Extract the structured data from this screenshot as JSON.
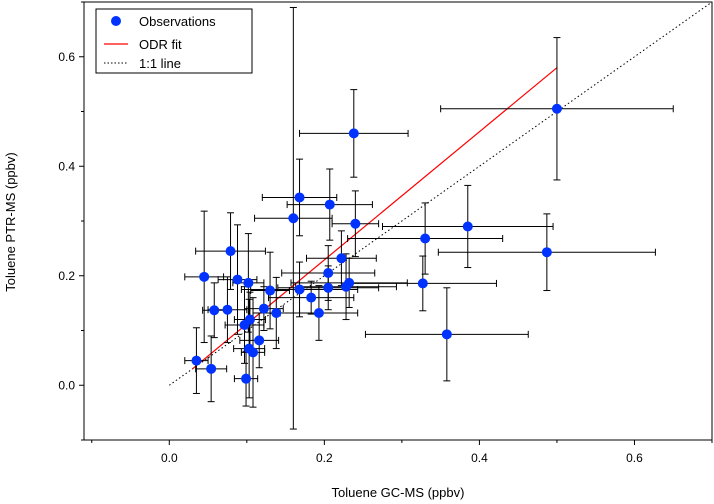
{
  "chart_data": {
    "type": "scatter",
    "xlabel": "Toluene GC-MS (ppbv)",
    "ylabel": "Toluene PTR-MS (ppbv)",
    "xlim": [
      -0.11,
      0.7
    ],
    "ylim": [
      -0.1,
      0.7
    ],
    "xticks": [
      "0.0",
      "0.2",
      "0.4",
      "0.6"
    ],
    "yticks": [
      "0.0",
      "0.2",
      "0.4",
      "0.6"
    ],
    "xtick_values": [
      0.0,
      0.2,
      0.4,
      0.6
    ],
    "ytick_values": [
      0.0,
      0.2,
      0.4,
      0.6
    ],
    "grid": false,
    "legend": {
      "position": "top-left",
      "entries": [
        {
          "label": "Observations",
          "style": "marker",
          "color": "#0033ff"
        },
        {
          "label": "ODR fit",
          "style": "line",
          "color": "#ff0000"
        },
        {
          "label": "1:1 line",
          "style": "dotted",
          "color": "#000000"
        }
      ]
    },
    "series": [
      {
        "name": "Observations",
        "type": "scatter-errorbars",
        "color": "#0033ff",
        "points": [
          {
            "x": 0.5,
            "y": 0.505,
            "xerr": 0.15,
            "yerr": 0.13
          },
          {
            "x": 0.238,
            "y": 0.46,
            "xerr": 0.07,
            "yerr": 0.08
          },
          {
            "x": 0.385,
            "y": 0.29,
            "xerr": 0.11,
            "yerr": 0.075
          },
          {
            "x": 0.487,
            "y": 0.243,
            "xerr": 0.14,
            "yerr": 0.07
          },
          {
            "x": 0.33,
            "y": 0.268,
            "xerr": 0.1,
            "yerr": 0.065
          },
          {
            "x": 0.358,
            "y": 0.093,
            "xerr": 0.105,
            "yerr": 0.085
          },
          {
            "x": 0.327,
            "y": 0.186,
            "xerr": 0.095,
            "yerr": 0.05
          },
          {
            "x": 0.168,
            "y": 0.343,
            "xerr": 0.048,
            "yerr": 0.07
          },
          {
            "x": 0.207,
            "y": 0.33,
            "xerr": 0.055,
            "yerr": 0.065
          },
          {
            "x": 0.16,
            "y": 0.305,
            "xerr": 0.05,
            "yerr": 0.385
          },
          {
            "x": 0.24,
            "y": 0.295,
            "xerr": 0.03,
            "yerr": 0.06
          },
          {
            "x": 0.222,
            "y": 0.232,
            "xerr": 0.045,
            "yerr": 0.05
          },
          {
            "x": 0.205,
            "y": 0.205,
            "xerr": 0.06,
            "yerr": 0.05
          },
          {
            "x": 0.232,
            "y": 0.187,
            "xerr": 0.075,
            "yerr": 0.045
          },
          {
            "x": 0.228,
            "y": 0.18,
            "xerr": 0.065,
            "yerr": 0.06
          },
          {
            "x": 0.205,
            "y": 0.178,
            "xerr": 0.065,
            "yerr": 0.04
          },
          {
            "x": 0.168,
            "y": 0.175,
            "xerr": 0.075,
            "yerr": 0.05
          },
          {
            "x": 0.183,
            "y": 0.16,
            "xerr": 0.055,
            "yerr": 0.03
          },
          {
            "x": 0.193,
            "y": 0.132,
            "xerr": 0.05,
            "yerr": 0.05
          },
          {
            "x": 0.079,
            "y": 0.245,
            "xerr": 0.045,
            "yerr": 0.07
          },
          {
            "x": 0.045,
            "y": 0.198,
            "xerr": 0.025,
            "yerr": 0.12
          },
          {
            "x": 0.088,
            "y": 0.193,
            "xerr": 0.025,
            "yerr": 0.1
          },
          {
            "x": 0.102,
            "y": 0.187,
            "xerr": 0.02,
            "yerr": 0.09
          },
          {
            "x": 0.13,
            "y": 0.173,
            "xerr": 0.025,
            "yerr": 0.07
          },
          {
            "x": 0.058,
            "y": 0.137,
            "xerr": 0.015,
            "yerr": 0.05
          },
          {
            "x": 0.075,
            "y": 0.138,
            "xerr": 0.025,
            "yerr": 0.06
          },
          {
            "x": 0.122,
            "y": 0.14,
            "xerr": 0.025,
            "yerr": 0.04
          },
          {
            "x": 0.138,
            "y": 0.132,
            "xerr": 0.03,
            "yerr": 0.065
          },
          {
            "x": 0.104,
            "y": 0.12,
            "xerr": 0.02,
            "yerr": 0.05
          },
          {
            "x": 0.097,
            "y": 0.11,
            "xerr": 0.025,
            "yerr": 0.07
          },
          {
            "x": 0.116,
            "y": 0.082,
            "xerr": 0.025,
            "yerr": 0.05
          },
          {
            "x": 0.103,
            "y": 0.067,
            "xerr": 0.02,
            "yerr": 0.09
          },
          {
            "x": 0.108,
            "y": 0.06,
            "xerr": 0.015,
            "yerr": 0.1
          },
          {
            "x": 0.035,
            "y": 0.045,
            "xerr": 0.015,
            "yerr": 0.06
          },
          {
            "x": 0.054,
            "y": 0.03,
            "xerr": 0.02,
            "yerr": 0.06
          },
          {
            "x": 0.099,
            "y": 0.012,
            "xerr": 0.015,
            "yerr": 0.05
          }
        ]
      },
      {
        "name": "ODR fit",
        "type": "line",
        "color": "#ff0000",
        "x": [
          0.03,
          0.5
        ],
        "y": [
          0.03,
          0.58
        ]
      },
      {
        "name": "1:1 line",
        "type": "line",
        "style": "dotted",
        "color": "#000000",
        "x": [
          0.0,
          0.7
        ],
        "y": [
          0.0,
          0.7
        ]
      }
    ]
  }
}
